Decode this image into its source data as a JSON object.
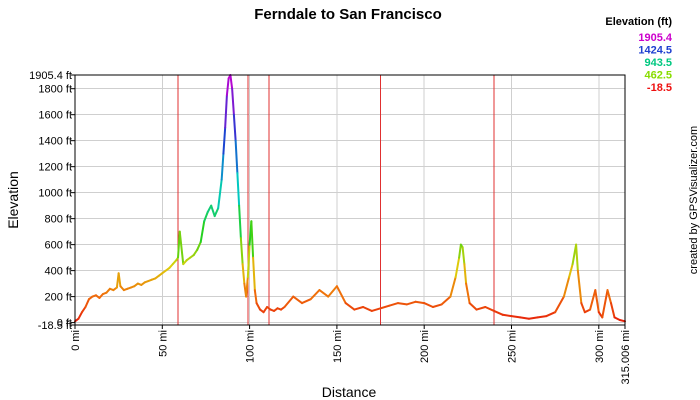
{
  "chart_data": {
    "type": "line",
    "title": "Ferndale to San Francisco",
    "xlabel": "Distance",
    "ylabel": "Elevation",
    "xlim": [
      0,
      315.006
    ],
    "ylim": [
      -18.5,
      1905.4
    ],
    "x_ticks": [
      {
        "value": 0,
        "label": "0 mi"
      },
      {
        "value": 50,
        "label": "50 mi"
      },
      {
        "value": 100,
        "label": "100 mi"
      },
      {
        "value": 150,
        "label": "150 mi"
      },
      {
        "value": 200,
        "label": "200 mi"
      },
      {
        "value": 250,
        "label": "250 mi"
      },
      {
        "value": 300,
        "label": "300 mi"
      },
      {
        "value": 315.006,
        "label": "315.006 mi"
      }
    ],
    "y_ticks": [
      {
        "value": 1905.4,
        "label": "1905.4 ft"
      },
      {
        "value": 1800,
        "label": "1800 ft"
      },
      {
        "value": 1600,
        "label": "1600 ft"
      },
      {
        "value": 1400,
        "label": "1400 ft"
      },
      {
        "value": 1200,
        "label": "1200 ft"
      },
      {
        "value": 1000,
        "label": "1000 ft"
      },
      {
        "value": 800,
        "label": "800 ft"
      },
      {
        "value": 600,
        "label": "600 ft"
      },
      {
        "value": 400,
        "label": "400 ft"
      },
      {
        "value": 200,
        "label": "200 ft"
      },
      {
        "value": 0,
        "label": "0 ft"
      },
      {
        "value": -18.5,
        "label": "-18.5 ft"
      }
    ],
    "grid": true,
    "segment_markers_x": [
      59,
      99,
      111,
      175,
      240
    ],
    "legend": {
      "title": "Elevation (ft)",
      "placement": "top-right",
      "entries": [
        {
          "label": "1905.4",
          "color": "#cc00cc"
        },
        {
          "label": "1424.5",
          "color": "#2040d0"
        },
        {
          "label": "943.5",
          "color": "#00c880"
        },
        {
          "label": "462.5",
          "color": "#88dd00"
        },
        {
          "label": "-18.5",
          "color": "#ee1010"
        }
      ]
    },
    "series": [
      {
        "x": [
          0,
          2,
          4,
          6,
          8,
          10,
          12,
          14,
          16,
          18,
          20,
          22,
          24,
          25,
          26,
          28,
          30,
          32,
          34,
          36,
          38,
          40,
          42,
          44,
          46,
          48,
          50,
          52,
          54,
          56,
          58,
          59,
          60,
          62,
          64,
          66,
          68,
          70,
          72,
          74,
          76,
          78,
          80,
          82,
          84,
          85,
          86,
          87,
          88,
          89,
          90,
          91,
          92,
          93,
          94,
          95,
          96,
          97,
          98,
          99,
          100,
          101,
          102,
          103,
          104,
          106,
          108,
          110,
          112,
          114,
          116,
          118,
          120,
          125,
          130,
          135,
          140,
          145,
          150,
          155,
          160,
          165,
          170,
          175,
          180,
          185,
          190,
          195,
          200,
          205,
          210,
          215,
          218,
          220,
          221,
          222,
          223,
          224,
          226,
          230,
          235,
          240,
          245,
          250,
          255,
          260,
          265,
          270,
          275,
          280,
          283,
          285,
          287,
          288,
          290,
          292,
          295,
          298,
          300,
          302,
          305,
          307,
          309,
          312,
          315.006
        ],
        "y": [
          10,
          30,
          80,
          120,
          180,
          200,
          210,
          190,
          220,
          230,
          260,
          250,
          270,
          380,
          280,
          250,
          260,
          270,
          280,
          300,
          290,
          310,
          320,
          330,
          340,
          360,
          380,
          400,
          420,
          450,
          480,
          500,
          700,
          450,
          480,
          500,
          520,
          560,
          620,
          780,
          850,
          900,
          820,
          880,
          1100,
          1300,
          1500,
          1750,
          1880,
          1905,
          1800,
          1600,
          1400,
          1150,
          900,
          650,
          450,
          300,
          200,
          350,
          600,
          780,
          500,
          250,
          150,
          100,
          80,
          120,
          100,
          90,
          110,
          100,
          120,
          200,
          150,
          180,
          250,
          200,
          280,
          150,
          100,
          120,
          90,
          110,
          130,
          150,
          140,
          160,
          150,
          120,
          140,
          200,
          350,
          500,
          600,
          580,
          450,
          300,
          150,
          100,
          120,
          90,
          60,
          50,
          40,
          30,
          40,
          50,
          80,
          200,
          350,
          450,
          600,
          400,
          150,
          80,
          100,
          250,
          80,
          40,
          250,
          150,
          40,
          20,
          10
        ]
      }
    ]
  },
  "credit": "created by GPSVisualizer.com"
}
